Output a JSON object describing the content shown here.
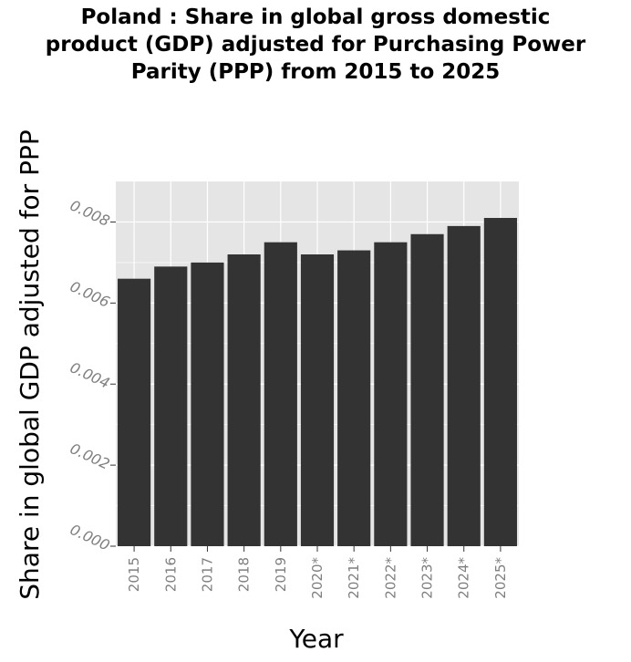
{
  "chart_data": {
    "type": "bar",
    "title_lines": [
      "Poland : Share in global gross domestic",
      "product (GDP) adjusted for Purchasing Power",
      "Parity (PPP) from 2015 to 2025"
    ],
    "xlabel": "Year",
    "ylabel": "Share in global GDP adjusted for PPP",
    "categories": [
      "2015",
      "2016",
      "2017",
      "2018",
      "2019",
      "2020*",
      "2021*",
      "2022*",
      "2023*",
      "2024*",
      "2025*"
    ],
    "values": [
      0.0066,
      0.0069,
      0.007,
      0.0072,
      0.0075,
      0.0072,
      0.0073,
      0.0075,
      0.0077,
      0.0079,
      0.0081
    ],
    "yticks": [
      "0.000",
      "0.002",
      "0.004",
      "0.006",
      "0.008"
    ],
    "ylim": [
      0,
      0.009
    ],
    "grid": true,
    "colors": {
      "bar": "#333333",
      "panel": "#e5e5e5",
      "grid": "#ffffff"
    }
  }
}
